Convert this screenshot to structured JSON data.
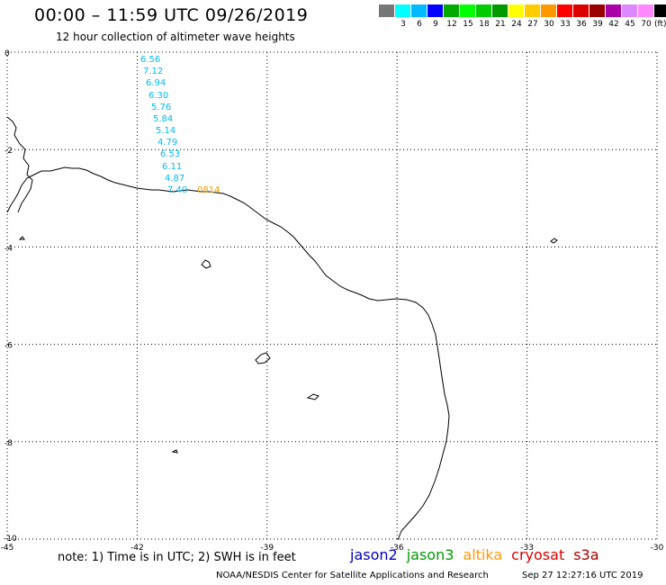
{
  "header": {
    "title": "00:00 – 11:59 UTC 09/26/2019",
    "subtitle": "12 hour collection of altimeter wave heights"
  },
  "legend": {
    "colors": [
      "#777777",
      "#00ffff",
      "#00bbff",
      "#0000ff",
      "#00aa00",
      "#00ff00",
      "#00cc00",
      "#009900",
      "#ffff00",
      "#ffcc00",
      "#ff9900",
      "#ff0000",
      "#dd0000",
      "#990000",
      "#aa00aa",
      "#dd88ff",
      "#ff88ff",
      "#000000"
    ],
    "labels": [
      "",
      "3",
      "6",
      "9",
      "12",
      "15",
      "18",
      "21",
      "24",
      "27",
      "30",
      "33",
      "36",
      "39",
      "42",
      "45",
      "70"
    ],
    "unit": "(ft)"
  },
  "map": {
    "x_ticks": [
      "-45",
      "-42",
      "-39",
      "-36",
      "-33",
      "-30"
    ],
    "y_ticks": [
      "0",
      "-2",
      "-4",
      "-6",
      "-8",
      "-10"
    ],
    "lon_range": [
      -45,
      -30
    ],
    "lat_range": [
      -10,
      0
    ]
  },
  "observations": {
    "cyan": [
      "6.56",
      "7.12",
      "6.94",
      "6.30",
      "5.76",
      "5.84",
      "5.14",
      "4.79",
      "6.53",
      "6.11",
      "4.87",
      "7.40"
    ],
    "orange": [
      "0814"
    ],
    "orange_color": "#ee9900"
  },
  "footer": {
    "note": "note:  1) Time is in UTC;  2) SWH is in feet",
    "satellites": [
      {
        "name": "jason2",
        "color": "#0000cc"
      },
      {
        "name": "jason3",
        "color": "#009900"
      },
      {
        "name": "altika",
        "color": "#ff9900"
      },
      {
        "name": "cryosat",
        "color": "#dd0000"
      },
      {
        "name": "s3a",
        "color": "#aa0000"
      }
    ],
    "credit": "NOAA/NESDIS Center for Satellite Applications and Research",
    "timestamp": "Sep 27 12:27:16 UTC 2019"
  }
}
